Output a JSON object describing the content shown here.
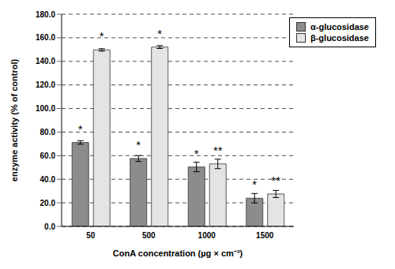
{
  "chart_data": {
    "type": "bar",
    "x_label": "ConA concentration (µg × cm⁻³)",
    "y_label": "enzyme activity (% of control)",
    "categories": [
      "50",
      "500",
      "1000",
      "1500"
    ],
    "series": [
      {
        "name": "α-glucosidase",
        "color": "#8c8c8c",
        "values": [
          71.2,
          57.6,
          50.4,
          23.9
        ],
        "errors": [
          1.5,
          2.5,
          4.0,
          4.0
        ],
        "significance": [
          "*",
          "*",
          "*",
          "*"
        ]
      },
      {
        "name": "β-glucosidase",
        "color": "#e4e4e4",
        "values": [
          149.7,
          152.1,
          53.0,
          27.5
        ],
        "errors": [
          1.0,
          1.2,
          4.0,
          3.0
        ],
        "significance": [
          "*",
          "*",
          "**",
          "**"
        ]
      }
    ],
    "ylim": [
      0,
      180
    ],
    "yticks": [
      {
        "value": 0,
        "label": "0.0"
      },
      {
        "value": 20,
        "label": "20.0"
      },
      {
        "value": 40,
        "label": "40.0"
      },
      {
        "value": 60,
        "label": "60.0"
      },
      {
        "value": 80,
        "label": "80.0"
      },
      {
        "value": 100,
        "label": "100.0"
      },
      {
        "value": 120,
        "label": "120.0"
      },
      {
        "value": 140,
        "label": "140.0"
      },
      {
        "value": 160,
        "label": "160.0"
      },
      {
        "value": 180,
        "label": "180.0"
      }
    ],
    "grid": true,
    "legend": "upper right"
  }
}
